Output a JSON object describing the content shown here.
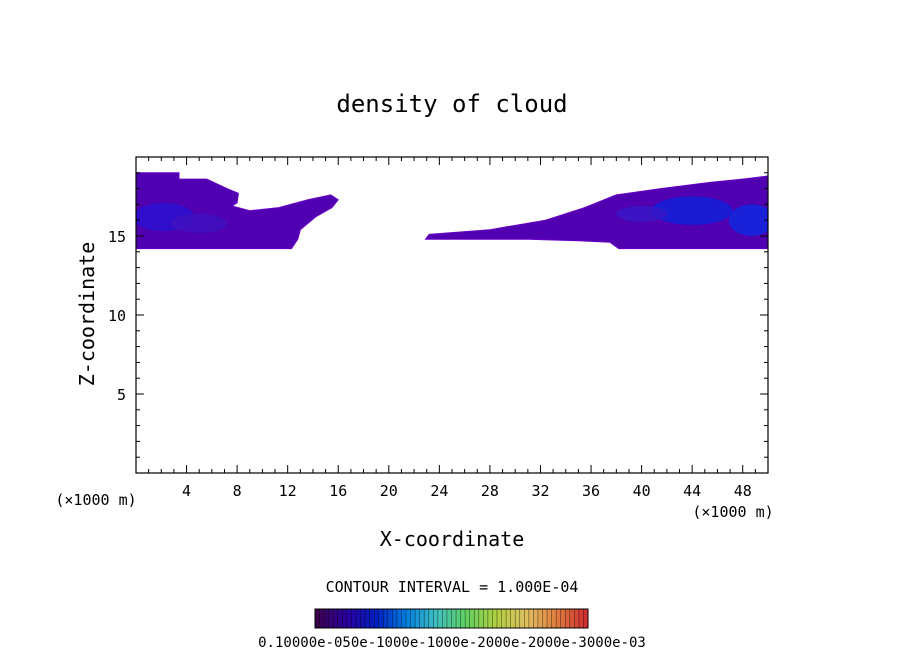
{
  "chart_data": {
    "type": "heatmap",
    "title": "density of cloud",
    "xlabel": "X-coordinate",
    "ylabel": "Z-coordinate",
    "x_unit_left": "(×1000 m)",
    "x_unit_right": "(×1000 m)",
    "xlim": [
      0,
      50
    ],
    "ylim": [
      0,
      20
    ],
    "x_ticks": [
      4,
      8,
      12,
      16,
      20,
      24,
      28,
      32,
      36,
      40,
      44,
      48
    ],
    "y_ticks": [
      5,
      10,
      15
    ],
    "x_tick_labels": [
      "4",
      "8",
      "12",
      "16",
      "20",
      "24",
      "28",
      "32",
      "36",
      "40",
      "44",
      "48"
    ],
    "y_tick_labels": [
      "5",
      "10",
      "15"
    ],
    "contour_interval_text": "CONTOUR INTERVAL = 1.000E-04",
    "colorbar_labels_text": "0.10000e-050e-1000e-1000e-2000e-2000e-3000e-03",
    "colorbar_colors": [
      "#3a0050",
      "#2a00a0",
      "#0020c0",
      "#0080e0",
      "#40c0c0",
      "#60d060",
      "#b0d040",
      "#e0c060",
      "#e08040",
      "#d03030"
    ],
    "regions": [
      {
        "name": "cloud-left",
        "fill": "#5000b0",
        "boundary": [
          [
            0,
            19.0
          ],
          [
            3.4,
            19.0
          ],
          [
            3.4,
            18.6
          ],
          [
            5.6,
            18.6
          ],
          [
            7.2,
            18.0
          ],
          [
            8.1,
            17.7
          ],
          [
            8.0,
            17.1
          ],
          [
            7.6,
            16.9
          ],
          [
            9.0,
            16.6
          ],
          [
            11.3,
            16.8
          ],
          [
            13.6,
            17.3
          ],
          [
            15.4,
            17.6
          ],
          [
            16.0,
            17.3
          ],
          [
            15.5,
            16.8
          ],
          [
            14.2,
            16.2
          ],
          [
            13.0,
            15.4
          ],
          [
            12.8,
            14.8
          ],
          [
            12.3,
            14.2
          ],
          [
            0,
            14.2
          ]
        ]
      },
      {
        "name": "cloud-right",
        "fill": "#5000b0",
        "boundary": [
          [
            22.9,
            14.8
          ],
          [
            23.2,
            15.1
          ],
          [
            28.0,
            15.4
          ],
          [
            32.4,
            16.0
          ],
          [
            35.5,
            16.8
          ],
          [
            38.0,
            17.6
          ],
          [
            41.5,
            18.0
          ],
          [
            45.5,
            18.4
          ],
          [
            48.0,
            18.6
          ],
          [
            50,
            18.8
          ],
          [
            50,
            14.2
          ],
          [
            38.2,
            14.2
          ],
          [
            37.5,
            14.6
          ],
          [
            35.0,
            14.7
          ],
          [
            31.0,
            14.8
          ]
        ]
      }
    ],
    "cores": [
      {
        "name": "core-left-1",
        "cx": 2.2,
        "cy": 16.2,
        "rx": 2.4,
        "ry": 0.9,
        "fill": "#2a10d0"
      },
      {
        "name": "core-left-2",
        "cx": 5.0,
        "cy": 15.8,
        "rx": 2.2,
        "ry": 0.6,
        "fill": "#4010c0"
      },
      {
        "name": "core-right-1",
        "cx": 44.0,
        "cy": 16.6,
        "rx": 3.2,
        "ry": 0.9,
        "fill": "#1020d8"
      },
      {
        "name": "core-right-2",
        "cx": 48.7,
        "cy": 16.0,
        "rx": 1.8,
        "ry": 1.0,
        "fill": "#1028e0"
      },
      {
        "name": "core-right-3",
        "cx": 40.0,
        "cy": 16.4,
        "rx": 2.0,
        "ry": 0.5,
        "fill": "#3818c8"
      }
    ]
  }
}
